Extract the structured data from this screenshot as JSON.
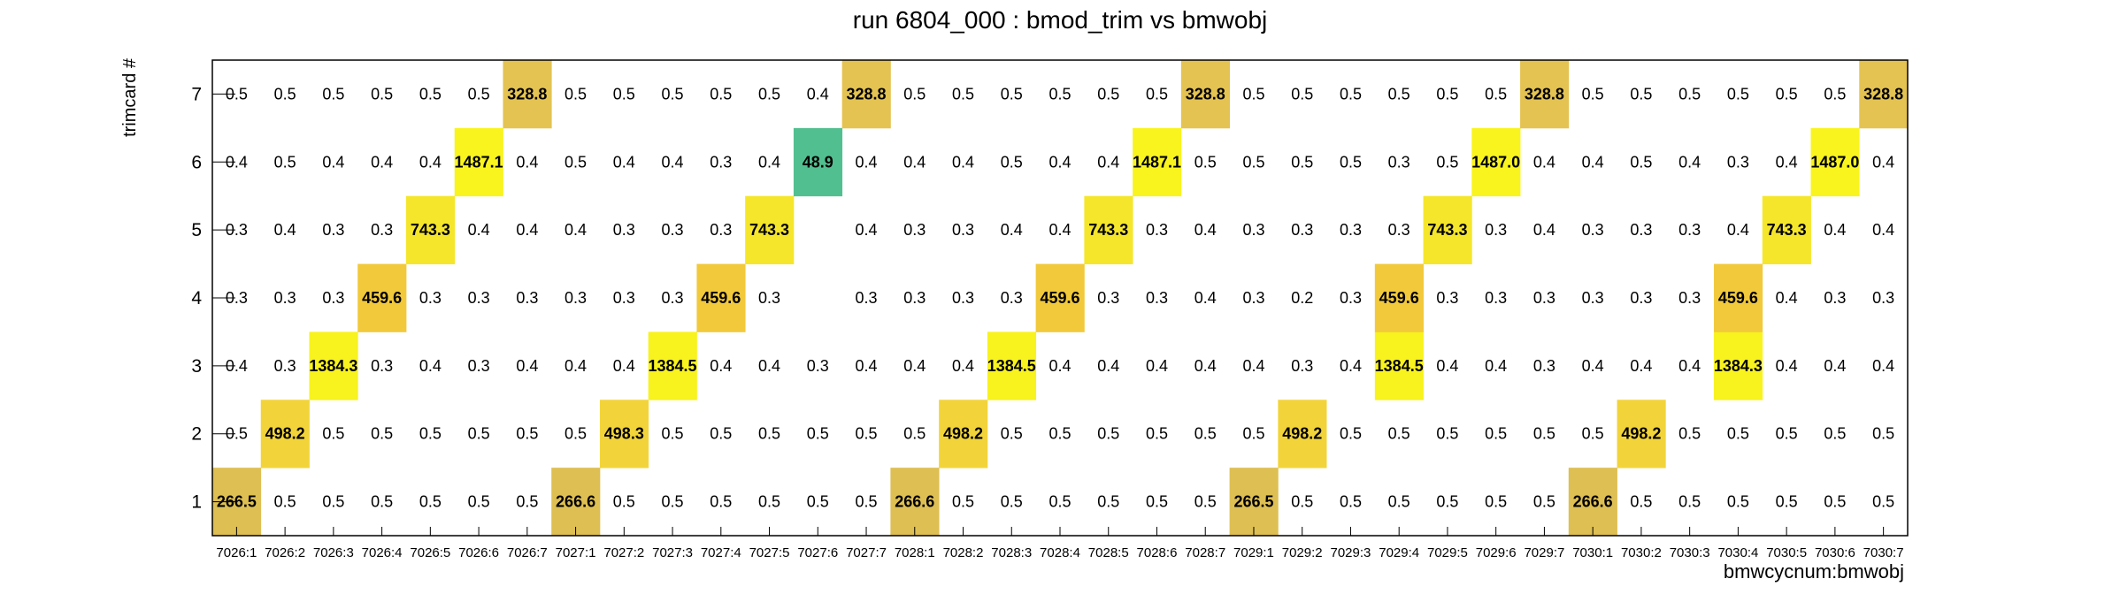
{
  "chart_data": {
    "type": "heatmap",
    "title": "run 6804_000 : bmod_trim vs bmwobj",
    "xlabel": "bmwcycnum:bmwobj",
    "ylabel": "trimcard #",
    "x_categories": [
      "7026:1",
      "7026:2",
      "7026:3",
      "7026:4",
      "7026:5",
      "7026:6",
      "7026:7",
      "7027:1",
      "7027:2",
      "7027:3",
      "7027:4",
      "7027:5",
      "7027:6",
      "7027:7",
      "7028:1",
      "7028:2",
      "7028:3",
      "7028:4",
      "7028:5",
      "7028:6",
      "7028:7",
      "7029:1",
      "7029:2",
      "7029:3",
      "7029:4",
      "7029:5",
      "7029:6",
      "7029:7",
      "7030:1",
      "7030:2",
      "7030:3",
      "7030:4",
      "7030:5",
      "7030:6",
      "7030:7"
    ],
    "y_categories": [
      "1",
      "2",
      "3",
      "4",
      "5",
      "6",
      "7"
    ],
    "rows": [
      [
        "266.5",
        "0.5",
        "0.5",
        "0.5",
        "0.5",
        "0.5",
        "0.5",
        "266.6",
        "0.5",
        "0.5",
        "0.5",
        "0.5",
        "0.5",
        "0.5",
        "266.6",
        "0.5",
        "0.5",
        "0.5",
        "0.5",
        "0.5",
        "0.5",
        "266.5",
        "0.5",
        "0.5",
        "0.5",
        "0.5",
        "0.5",
        "0.5",
        "266.6",
        "0.5",
        "0.5",
        "0.5",
        "0.5",
        "0.5",
        "0.5"
      ],
      [
        "0.5",
        "498.2",
        "0.5",
        "0.5",
        "0.5",
        "0.5",
        "0.5",
        "0.5",
        "498.3",
        "0.5",
        "0.5",
        "0.5",
        "0.5",
        "0.5",
        "0.5",
        "498.2",
        "0.5",
        "0.5",
        "0.5",
        "0.5",
        "0.5",
        "0.5",
        "498.2",
        "0.5",
        "0.5",
        "0.5",
        "0.5",
        "0.5",
        "0.5",
        "498.2",
        "0.5",
        "0.5",
        "0.5",
        "0.5",
        "0.5"
      ],
      [
        "0.4",
        "0.3",
        "1384.3",
        "0.3",
        "0.4",
        "0.3",
        "0.4",
        "0.4",
        "0.4",
        "1384.5",
        "0.4",
        "0.4",
        "0.3",
        "0.4",
        "0.4",
        "0.4",
        "1384.5",
        "0.4",
        "0.4",
        "0.4",
        "0.4",
        "0.4",
        "0.3",
        "0.4",
        "1384.5",
        "0.4",
        "0.4",
        "0.3",
        "0.4",
        "0.4",
        "0.4",
        "1384.3",
        "0.4",
        "0.4",
        "0.4"
      ],
      [
        "0.3",
        "0.3",
        "0.3",
        "459.6",
        "0.3",
        "0.3",
        "0.3",
        "0.3",
        "0.3",
        "0.3",
        "459.6",
        "0.3",
        null,
        "0.3",
        "0.3",
        "0.3",
        "0.3",
        "459.6",
        "0.3",
        "0.3",
        "0.4",
        "0.3",
        "0.2",
        "0.3",
        "459.6",
        "0.3",
        "0.3",
        "0.3",
        "0.3",
        "0.3",
        "0.3",
        "459.6",
        "0.4",
        "0.3",
        "0.3"
      ],
      [
        "0.3",
        "0.4",
        "0.3",
        "0.3",
        "743.3",
        "0.4",
        "0.4",
        "0.4",
        "0.3",
        "0.3",
        "0.3",
        "743.3",
        null,
        "0.4",
        "0.3",
        "0.3",
        "0.4",
        "0.4",
        "743.3",
        "0.3",
        "0.4",
        "0.3",
        "0.3",
        "0.3",
        "0.3",
        "743.3",
        "0.3",
        "0.4",
        "0.3",
        "0.3",
        "0.3",
        "0.4",
        "743.3",
        "0.4",
        "0.4"
      ],
      [
        "0.4",
        "0.5",
        "0.4",
        "0.4",
        "0.4",
        "1487.1",
        "0.4",
        "0.5",
        "0.4",
        "0.4",
        "0.3",
        "0.4",
        "48.9",
        "0.4",
        "0.4",
        "0.4",
        "0.5",
        "0.4",
        "0.4",
        "1487.1",
        "0.5",
        "0.5",
        "0.5",
        "0.5",
        "0.3",
        "0.5",
        "1487.0",
        "0.4",
        "0.4",
        "0.5",
        "0.4",
        "0.3",
        "0.4",
        "1487.0",
        "0.4"
      ],
      [
        "0.5",
        "0.5",
        "0.5",
        "0.5",
        "0.5",
        "0.5",
        "328.8",
        "0.5",
        "0.5",
        "0.5",
        "0.5",
        "0.5",
        "0.4",
        "328.8",
        "0.5",
        "0.5",
        "0.5",
        "0.5",
        "0.5",
        "0.5",
        "328.8",
        "0.5",
        "0.5",
        "0.5",
        "0.5",
        "0.5",
        "0.5",
        "328.8",
        "0.5",
        "0.5",
        "0.5",
        "0.5",
        "0.5",
        "0.5",
        "328.8"
      ]
    ],
    "palette": {
      "v1384": "#f8f21f",
      "v1487": "#f9f41e",
      "v743": "#f5e62b",
      "v498": "#f2d43a",
      "v459": "#f2c93b",
      "v328": "#e4c352",
      "v266": "#debf53",
      "v48": "#52bf90"
    },
    "grid": false,
    "legend": "none"
  }
}
